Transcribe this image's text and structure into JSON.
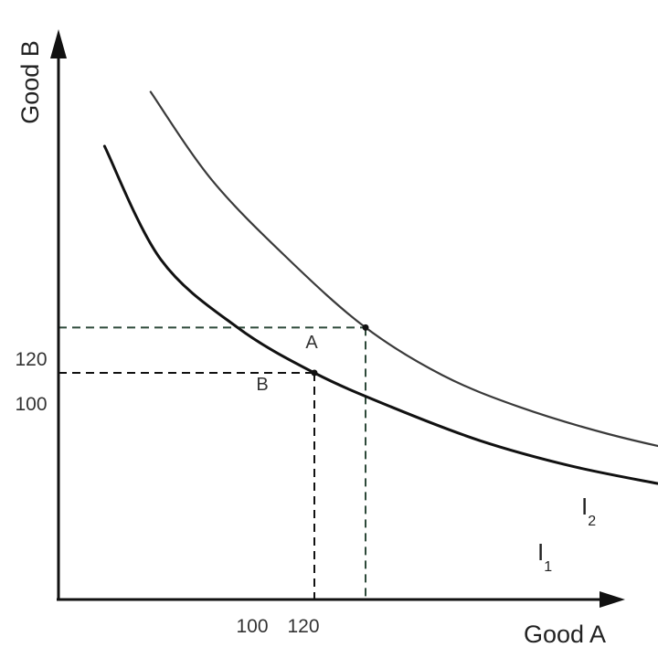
{
  "chart_data": {
    "type": "line",
    "xlabel": "Good A",
    "ylabel": "Good B",
    "x_ticks": [
      "100",
      "120"
    ],
    "y_ticks": [
      "120",
      "100"
    ],
    "series": [
      {
        "name": "I1",
        "label_main": "I",
        "label_sub": "1",
        "color": "#111111",
        "points": [
          [
            18,
            200
          ],
          [
            40,
            150
          ],
          [
            70,
            120
          ],
          [
            100,
            100
          ],
          [
            130,
            85
          ],
          [
            165,
            70
          ],
          [
            200,
            59
          ],
          [
            235,
            51
          ],
          [
            265,
            45
          ]
        ]
      },
      {
        "name": "I2",
        "label_main": "I",
        "label_sub": "2",
        "color": "#3a3a3a",
        "points": [
          [
            36,
            224
          ],
          [
            60,
            185
          ],
          [
            90,
            150
          ],
          [
            120,
            120
          ],
          [
            150,
            99
          ],
          [
            180,
            85
          ],
          [
            215,
            73
          ],
          [
            250,
            64
          ],
          [
            285,
            57
          ]
        ]
      }
    ],
    "points": [
      {
        "label": "A",
        "x": 120,
        "y": 120,
        "guide_color": "#2e4a3a"
      },
      {
        "label": "B",
        "x": 100,
        "y": 100,
        "guide_color": "#111111"
      }
    ],
    "grid": false,
    "legend": "none"
  }
}
